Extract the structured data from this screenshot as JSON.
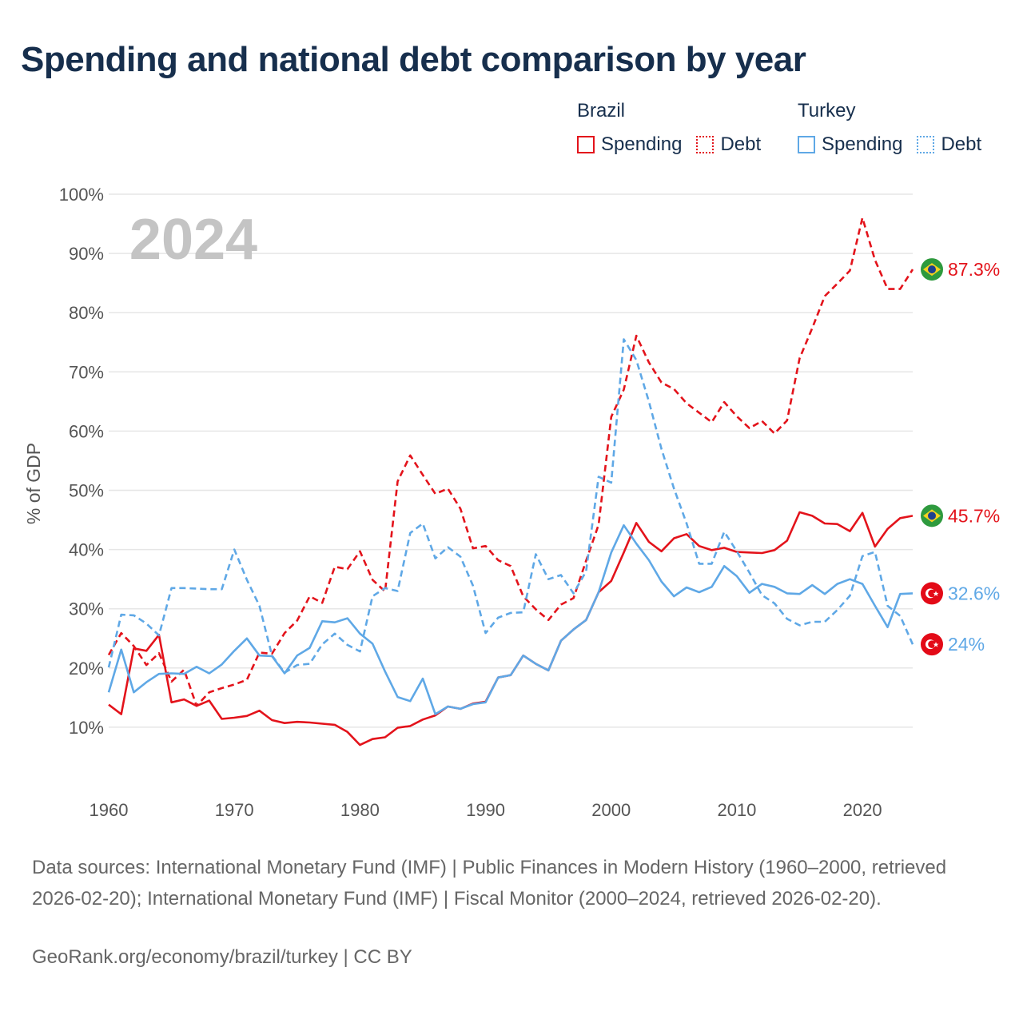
{
  "title": "Spending and national debt comparison by year",
  "legend": {
    "groups": [
      {
        "name": "Brazil",
        "items": [
          {
            "label": "Spending",
            "style": "solid",
            "color": "#e3131b"
          },
          {
            "label": "Debt",
            "style": "dotted",
            "color": "#e3131b"
          }
        ]
      },
      {
        "name": "Turkey",
        "items": [
          {
            "label": "Spending",
            "style": "solid",
            "color": "#5fa8e6"
          },
          {
            "label": "Debt",
            "style": "dotted",
            "color": "#5fa8e6"
          }
        ]
      }
    ]
  },
  "source_text": "Data sources: International Monetary Fund (IMF) | Public Finances in Modern History (1960–2000, retrieved 2026-02-20); International Monetary Fund (IMF) | Fiscal Monitor (2000–2024, retrieved 2026-02-20).",
  "credit_text": "GeoRank.org/economy/brazil/turkey | CC BY",
  "chart_data": {
    "type": "line",
    "title": "Spending and national debt comparison by year",
    "year_label": "2024",
    "xlabel": "",
    "ylabel": "% of GDP",
    "xlim": [
      1960,
      2024
    ],
    "ylim": [
      0,
      100
    ],
    "x_ticks": [
      1960,
      1970,
      1980,
      1990,
      2000,
      2010,
      2020
    ],
    "y_ticks": [
      10,
      20,
      30,
      40,
      50,
      60,
      70,
      80,
      90,
      100
    ],
    "y_tick_labels": [
      "10%",
      "20%",
      "30%",
      "40%",
      "50%",
      "60%",
      "70%",
      "80%",
      "90%",
      "100%"
    ],
    "grid": true,
    "series": [
      {
        "name": "Brazil Debt",
        "country": "Brazil",
        "metric": "Debt",
        "color": "#e3131b",
        "dash": "dashed",
        "end_label": "87.3%",
        "flag": "brazil",
        "points": [
          [
            1960,
            22.2
          ],
          [
            1961,
            25.9
          ],
          [
            1962,
            23.7
          ],
          [
            1963,
            20.5
          ],
          [
            1964,
            22.5
          ],
          [
            1965,
            17.7
          ],
          [
            1966,
            19.7
          ],
          [
            1967,
            13.6
          ],
          [
            1968,
            15.9
          ],
          [
            1969,
            16.6
          ],
          [
            1970,
            17.2
          ],
          [
            1971,
            18
          ],
          [
            1972,
            22.6
          ],
          [
            1973,
            22.4
          ],
          [
            1974,
            25.9
          ],
          [
            1975,
            28
          ],
          [
            1976,
            32.1
          ],
          [
            1977,
            31
          ],
          [
            1978,
            37.1
          ],
          [
            1979,
            36.7
          ],
          [
            1980,
            39.7
          ],
          [
            1981,
            34.9
          ],
          [
            1982,
            32.9
          ],
          [
            1983,
            51.5
          ],
          [
            1984,
            55.9
          ],
          [
            1985,
            52.6
          ],
          [
            1986,
            49.4
          ],
          [
            1987,
            50.3
          ],
          [
            1988,
            46.9
          ],
          [
            1989,
            40.2
          ],
          [
            1990,
            40.6
          ],
          [
            1991,
            38.2
          ],
          [
            1992,
            37.2
          ],
          [
            1993,
            32.1
          ],
          [
            1994,
            29.9
          ],
          [
            1995,
            28.1
          ],
          [
            1996,
            30.7
          ],
          [
            1997,
            31.8
          ],
          [
            1998,
            38.1
          ],
          [
            1999,
            44.2
          ],
          [
            2000,
            62.4
          ],
          [
            2001,
            67
          ],
          [
            2002,
            76.1
          ],
          [
            2003,
            71.6
          ],
          [
            2004,
            68.2
          ],
          [
            2005,
            67.1
          ],
          [
            2006,
            64.7
          ],
          [
            2007,
            63.1
          ],
          [
            2008,
            61.5
          ],
          [
            2009,
            64.9
          ],
          [
            2010,
            62.5
          ],
          [
            2011,
            60.5
          ],
          [
            2012,
            61.7
          ],
          [
            2013,
            59.6
          ],
          [
            2014,
            61.8
          ],
          [
            2015,
            72.3
          ],
          [
            2016,
            77.4
          ],
          [
            2017,
            82.8
          ],
          [
            2018,
            84.9
          ],
          [
            2019,
            87.1
          ],
          [
            2020,
            96.0
          ],
          [
            2021,
            88.9
          ],
          [
            2022,
            84.0
          ],
          [
            2023,
            84.0
          ],
          [
            2024,
            87.3
          ]
        ]
      },
      {
        "name": "Brazil Spending",
        "country": "Brazil",
        "metric": "Spending",
        "color": "#e3131b",
        "dash": "solid",
        "end_label": "45.7%",
        "flag": "brazil",
        "points": [
          [
            1960,
            13.8
          ],
          [
            1961,
            12.2
          ],
          [
            1962,
            23.3
          ],
          [
            1963,
            22.9
          ],
          [
            1964,
            25.6
          ],
          [
            1965,
            14.2
          ],
          [
            1966,
            14.7
          ],
          [
            1967,
            13.6
          ],
          [
            1968,
            14.5
          ],
          [
            1969,
            11.4
          ],
          [
            1970,
            11.6
          ],
          [
            1971,
            11.9
          ],
          [
            1972,
            12.8
          ],
          [
            1973,
            11.2
          ],
          [
            1974,
            10.7
          ],
          [
            1975,
            10.9
          ],
          [
            1976,
            10.8
          ],
          [
            1977,
            10.6
          ],
          [
            1978,
            10.4
          ],
          [
            1979,
            9.2
          ],
          [
            1980,
            7.0
          ],
          [
            1981,
            8.0
          ],
          [
            1982,
            8.3
          ],
          [
            1983,
            9.9
          ],
          [
            1984,
            10.2
          ],
          [
            1985,
            11.3
          ],
          [
            1986,
            12.0
          ],
          [
            1987,
            13.5
          ],
          [
            1988,
            13.1
          ],
          [
            1989,
            14.0
          ],
          [
            1990,
            14.3
          ],
          [
            1991,
            18.4
          ],
          [
            1992,
            18.8
          ],
          [
            1993,
            22.1
          ],
          [
            1994,
            20.7
          ],
          [
            1995,
            19.6
          ],
          [
            1996,
            24.6
          ],
          [
            1997,
            26.5
          ],
          [
            1998,
            28.1
          ],
          [
            1999,
            32.8
          ],
          [
            2000,
            34.7
          ],
          [
            2001,
            39.5
          ],
          [
            2002,
            44.5
          ],
          [
            2003,
            41.3
          ],
          [
            2004,
            39.7
          ],
          [
            2005,
            41.9
          ],
          [
            2006,
            42.6
          ],
          [
            2007,
            40.6
          ],
          [
            2008,
            39.9
          ],
          [
            2009,
            40.3
          ],
          [
            2010,
            39.6
          ],
          [
            2011,
            39.5
          ],
          [
            2012,
            39.4
          ],
          [
            2013,
            39.9
          ],
          [
            2014,
            41.5
          ],
          [
            2015,
            46.3
          ],
          [
            2016,
            45.7
          ],
          [
            2017,
            44.4
          ],
          [
            2018,
            44.3
          ],
          [
            2019,
            43.1
          ],
          [
            2020,
            46.2
          ],
          [
            2021,
            40.5
          ],
          [
            2022,
            43.5
          ],
          [
            2023,
            45.3
          ],
          [
            2024,
            45.7
          ]
        ]
      },
      {
        "name": "Turkey Spending",
        "country": "Turkey",
        "metric": "Spending",
        "color": "#5fa8e6",
        "dash": "solid",
        "end_label": "32.6%",
        "flag": "turkey",
        "points": [
          [
            1960,
            15.9
          ],
          [
            1961,
            23.1
          ],
          [
            1962,
            15.9
          ],
          [
            1963,
            17.6
          ],
          [
            1964,
            19.0
          ],
          [
            1965,
            19.1
          ],
          [
            1966,
            19.0
          ],
          [
            1967,
            20.2
          ],
          [
            1968,
            19.1
          ],
          [
            1969,
            20.6
          ],
          [
            1970,
            22.9
          ],
          [
            1971,
            25.0
          ],
          [
            1972,
            22.1
          ],
          [
            1973,
            22.0
          ],
          [
            1974,
            19.1
          ],
          [
            1975,
            22.1
          ],
          [
            1976,
            23.4
          ],
          [
            1977,
            27.9
          ],
          [
            1978,
            27.7
          ],
          [
            1979,
            28.4
          ],
          [
            1980,
            25.8
          ],
          [
            1981,
            24.1
          ],
          [
            1982,
            19.4
          ],
          [
            1983,
            15.1
          ],
          [
            1984,
            14.4
          ],
          [
            1985,
            18.2
          ],
          [
            1986,
            12.2
          ],
          [
            1987,
            13.5
          ],
          [
            1988,
            13.1
          ],
          [
            1989,
            13.9
          ],
          [
            1990,
            14.2
          ],
          [
            1991,
            18.4
          ],
          [
            1992,
            18.8
          ],
          [
            1993,
            22.1
          ],
          [
            1994,
            20.7
          ],
          [
            1995,
            19.6
          ],
          [
            1996,
            24.6
          ],
          [
            1997,
            26.5
          ],
          [
            1998,
            28.1
          ],
          [
            1999,
            32.8
          ],
          [
            2000,
            39.5
          ],
          [
            2001,
            44.1
          ],
          [
            2002,
            41.0
          ],
          [
            2003,
            38.2
          ],
          [
            2004,
            34.6
          ],
          [
            2005,
            32.1
          ],
          [
            2006,
            33.6
          ],
          [
            2007,
            32.8
          ],
          [
            2008,
            33.7
          ],
          [
            2009,
            37.2
          ],
          [
            2010,
            35.5
          ],
          [
            2011,
            32.7
          ],
          [
            2012,
            34.2
          ],
          [
            2013,
            33.7
          ],
          [
            2014,
            32.6
          ],
          [
            2015,
            32.5
          ],
          [
            2016,
            34.0
          ],
          [
            2017,
            32.5
          ],
          [
            2018,
            34.2
          ],
          [
            2019,
            35.0
          ],
          [
            2020,
            34.2
          ],
          [
            2021,
            30.5
          ],
          [
            2022,
            26.9
          ],
          [
            2023,
            32.5
          ],
          [
            2024,
            32.6
          ]
        ]
      },
      {
        "name": "Turkey Debt",
        "country": "Turkey",
        "metric": "Debt",
        "color": "#5fa8e6",
        "dash": "dashed",
        "end_label": "24%",
        "flag": "turkey",
        "points": [
          [
            1960,
            20.1
          ],
          [
            1961,
            29.0
          ],
          [
            1962,
            28.9
          ],
          [
            1963,
            27.5
          ],
          [
            1964,
            25.5
          ],
          [
            1965,
            33.5
          ],
          [
            1966,
            33.5
          ],
          [
            1967,
            33.4
          ],
          [
            1968,
            33.3
          ],
          [
            1969,
            33.3
          ],
          [
            1970,
            40.0
          ],
          [
            1971,
            34.9
          ],
          [
            1972,
            30.5
          ],
          [
            1973,
            22.1
          ],
          [
            1974,
            19.2
          ],
          [
            1975,
            20.5
          ],
          [
            1976,
            20.7
          ],
          [
            1977,
            24.0
          ],
          [
            1978,
            25.8
          ],
          [
            1979,
            23.9
          ],
          [
            1980,
            22.8
          ],
          [
            1981,
            32.1
          ],
          [
            1982,
            33.5
          ],
          [
            1983,
            33.0
          ],
          [
            1984,
            42.8
          ],
          [
            1985,
            44.4
          ],
          [
            1986,
            38.5
          ],
          [
            1987,
            40.4
          ],
          [
            1988,
            38.8
          ],
          [
            1989,
            33.9
          ],
          [
            1990,
            25.9
          ],
          [
            1991,
            28.5
          ],
          [
            1992,
            29.3
          ],
          [
            1993,
            29.4
          ],
          [
            1994,
            39.2
          ],
          [
            1995,
            35.0
          ],
          [
            1996,
            35.7
          ],
          [
            1997,
            32.6
          ],
          [
            1998,
            36.3
          ],
          [
            1999,
            52.3
          ],
          [
            2000,
            51.3
          ],
          [
            2001,
            75.5
          ],
          [
            2002,
            72.0
          ],
          [
            2003,
            65.0
          ],
          [
            2004,
            57.0
          ],
          [
            2005,
            50.3
          ],
          [
            2006,
            44.4
          ],
          [
            2007,
            37.6
          ],
          [
            2008,
            37.6
          ],
          [
            2009,
            43.0
          ],
          [
            2010,
            39.7
          ],
          [
            2011,
            36.1
          ],
          [
            2012,
            32.3
          ],
          [
            2013,
            30.9
          ],
          [
            2014,
            28.3
          ],
          [
            2015,
            27.2
          ],
          [
            2016,
            27.8
          ],
          [
            2017,
            27.8
          ],
          [
            2018,
            29.8
          ],
          [
            2019,
            32.2
          ],
          [
            2020,
            38.9
          ],
          [
            2021,
            39.6
          ],
          [
            2022,
            30.5
          ],
          [
            2023,
            28.8
          ],
          [
            2024,
            24.0
          ]
        ]
      }
    ]
  }
}
